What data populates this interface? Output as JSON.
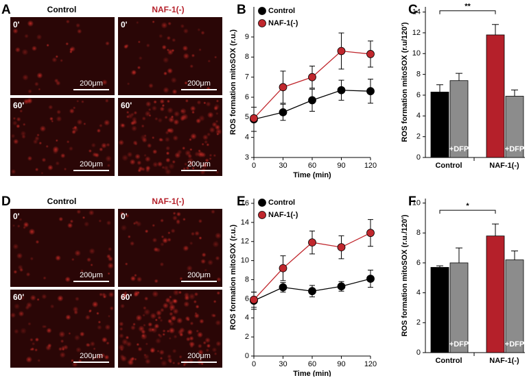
{
  "micrographs": [
    {
      "panel": "A",
      "columns": [
        "Control",
        "NAF-1(-)"
      ],
      "times": [
        "0'",
        "60'"
      ],
      "scale_bar": "200μm"
    },
    {
      "panel": "D",
      "columns": [
        "Control",
        "NAF-1(-)"
      ],
      "times": [
        "0'",
        "60'"
      ],
      "scale_bar": "200μm"
    }
  ],
  "chart_data": [
    {
      "type": "line",
      "panel": "B",
      "x_label": "Time (min)",
      "y_label": "ROS formation mitoSOX (r.u.)",
      "x": [
        0,
        30,
        60,
        90,
        120
      ],
      "xlim": [
        0,
        120
      ],
      "xticks": [
        0,
        30,
        60,
        90,
        120
      ],
      "ylim": [
        3,
        10.5
      ],
      "yticks": [
        3,
        4,
        5,
        6,
        7,
        8,
        9
      ],
      "series": [
        {
          "name": "Control",
          "color": "#000000",
          "values": [
            4.9,
            5.25,
            5.85,
            6.35,
            6.3
          ],
          "errors": [
            0.6,
            0.4,
            0.55,
            0.5,
            0.6
          ]
        },
        {
          "name": "NAF-1(-)",
          "color": "#c0272d",
          "values": [
            4.95,
            6.5,
            7.0,
            8.3,
            8.15
          ],
          "errors": [
            0.1,
            0.8,
            0.55,
            0.9,
            0.65
          ]
        }
      ]
    },
    {
      "type": "bar",
      "panel": "C",
      "y_label": "ROS formation mitoSOX (r.u/120')",
      "ylim": [
        0,
        14.5
      ],
      "yticks": [
        0,
        2,
        4,
        6,
        8,
        10,
        12,
        14
      ],
      "values": [
        6.3,
        7.4,
        11.8,
        5.9
      ],
      "errors": [
        0.7,
        0.7,
        1.0,
        0.6
      ],
      "colors": [
        "#000000",
        "#8c8c8c",
        "#b5202a",
        "#8c8c8c"
      ],
      "bar_labels": [
        null,
        "+DFP",
        null,
        "+DFP"
      ],
      "groups": [
        "Control",
        "NAF-1(-)"
      ],
      "significance": "**"
    },
    {
      "type": "line",
      "panel": "E",
      "x_label": "Time (min)",
      "y_label": "ROS formation mitoSOX (r.u.)",
      "x": [
        0,
        30,
        60,
        90,
        120
      ],
      "xlim": [
        0,
        120
      ],
      "xticks": [
        0,
        30,
        60,
        90,
        120
      ],
      "ylim": [
        0,
        16.5
      ],
      "yticks": [
        0,
        2,
        4,
        6,
        8,
        10,
        12,
        14,
        16
      ],
      "series": [
        {
          "name": "Control",
          "color": "#000000",
          "values": [
            5.8,
            7.2,
            6.8,
            7.3,
            8.1
          ],
          "errors": [
            0.9,
            0.5,
            0.6,
            0.5,
            0.9
          ]
        },
        {
          "name": "NAF-1(-)",
          "color": "#c0272d",
          "values": [
            5.9,
            9.2,
            11.9,
            11.4,
            12.9
          ],
          "errors": [
            0.8,
            1.3,
            1.2,
            1.2,
            1.4
          ]
        }
      ]
    },
    {
      "type": "bar",
      "panel": "F",
      "y_label": "ROS formation mitoSOX (r.u./120')",
      "ylim": [
        0,
        10.3
      ],
      "yticks": [
        0,
        2,
        4,
        6,
        8,
        10
      ],
      "values": [
        5.7,
        6.0,
        7.8,
        6.2
      ],
      "errors": [
        0.1,
        1.0,
        0.8,
        0.6
      ],
      "colors": [
        "#000000",
        "#8c8c8c",
        "#b5202a",
        "#8c8c8c"
      ],
      "bar_labels": [
        null,
        "+DFP",
        null,
        "+DFP"
      ],
      "groups": [
        "Control",
        "NAF-1(-)"
      ],
      "significance": "*"
    }
  ]
}
